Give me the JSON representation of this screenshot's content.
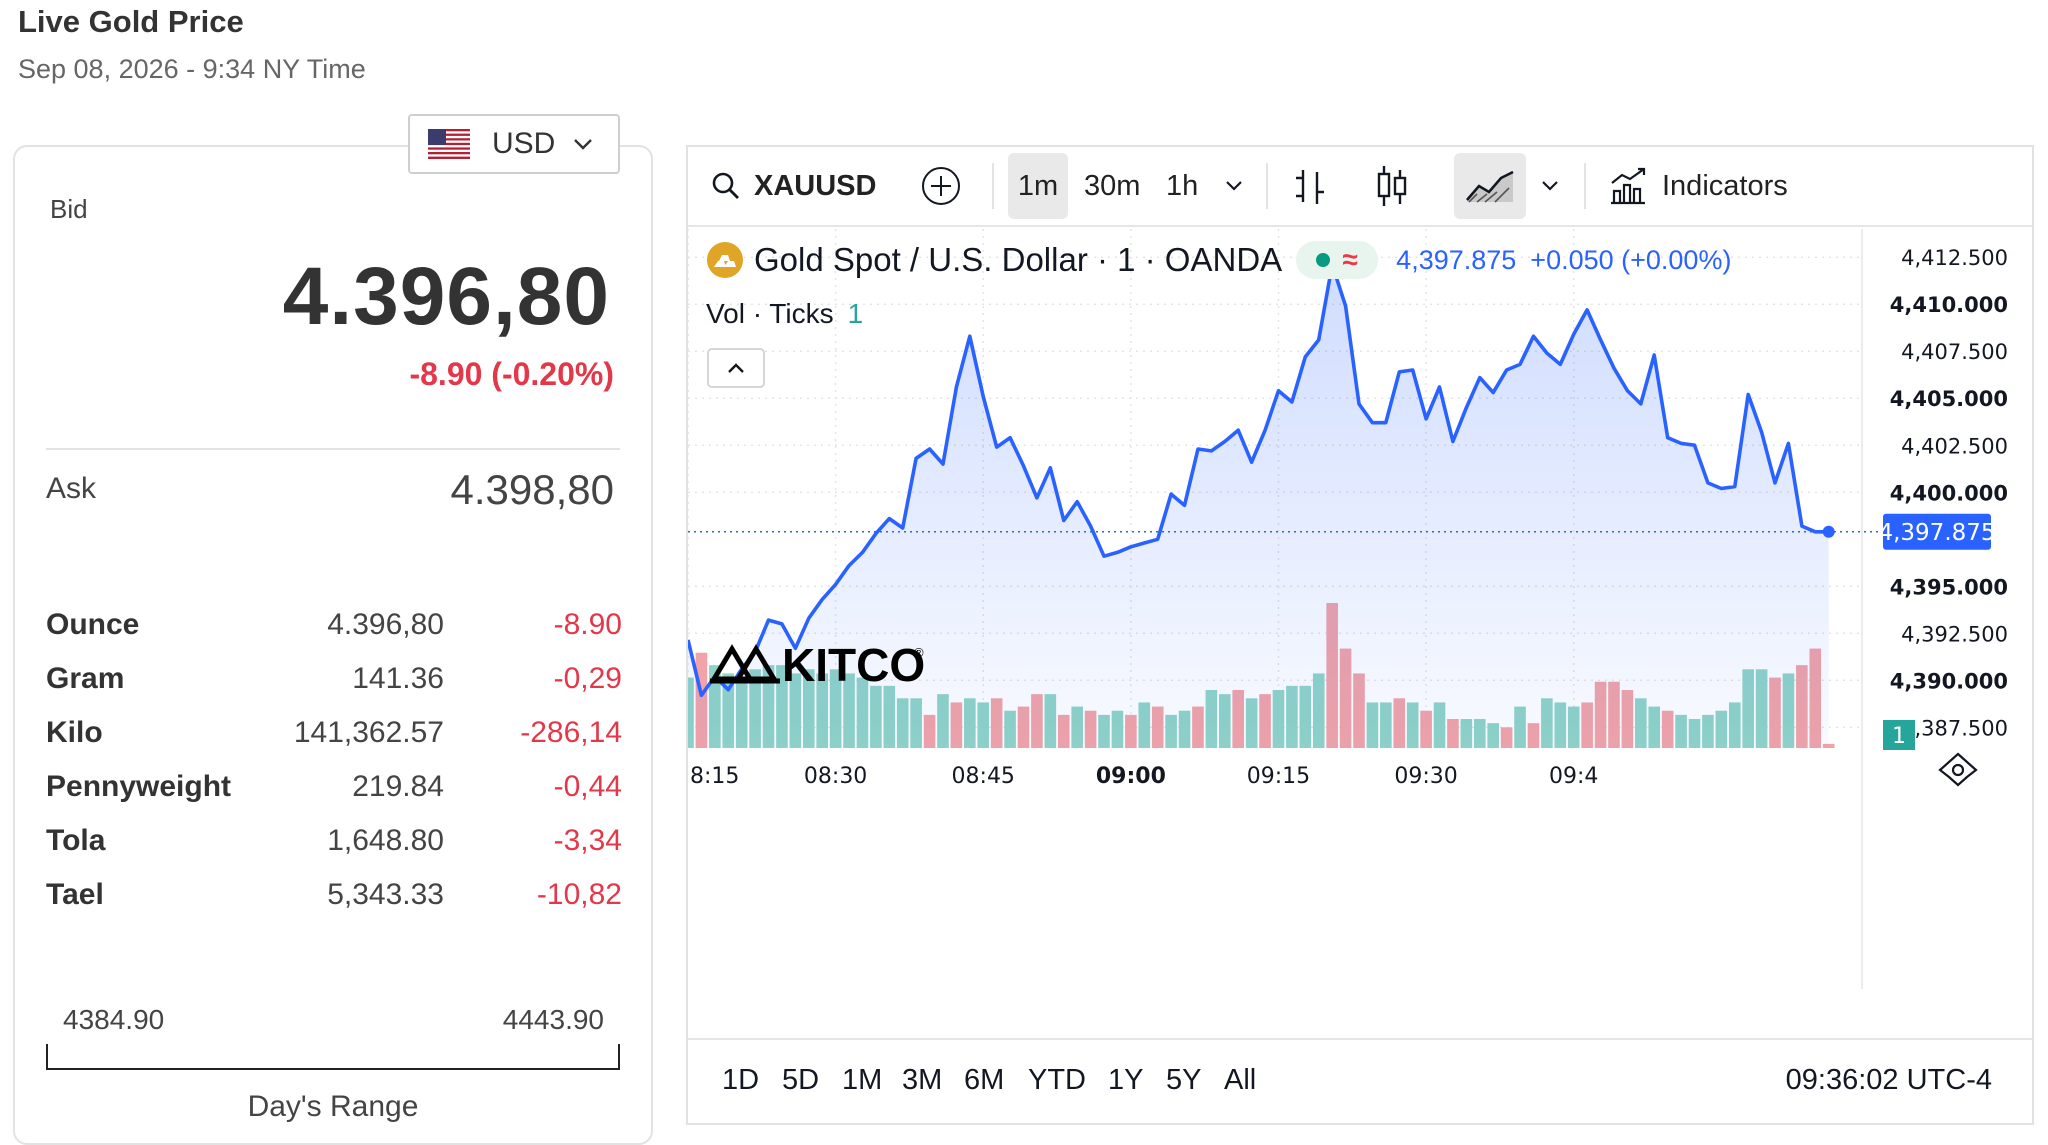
{
  "header": {
    "title": "Live Gold Price",
    "date": "Sep 08, 2026 - 9:34 NY Time"
  },
  "currency": {
    "code": "USD",
    "flag_icon": "us-flag-icon"
  },
  "quote": {
    "bid_label": "Bid",
    "bid": "4.396,80",
    "change": "-8.90 (-0.20%)",
    "ask_label": "Ask",
    "ask": "4.398,80"
  },
  "units": [
    {
      "name": "Ounce",
      "price": "4.396,80",
      "change": "-8.90"
    },
    {
      "name": "Gram",
      "price": "141.36",
      "change": "-0,29"
    },
    {
      "name": "Kilo",
      "price": "141,362.57",
      "change": "-286,14"
    },
    {
      "name": "Pennyweight",
      "price": "219.84",
      "change": "-0,44"
    },
    {
      "name": "Tola",
      "price": "1,648.80",
      "change": "-3,34"
    },
    {
      "name": "Tael",
      "price": "5,343.33",
      "change": "-10,82"
    }
  ],
  "days_range": {
    "low": "4384.90",
    "high": "4443.90",
    "label": "Day's Range"
  },
  "toolbar": {
    "symbol": "XAUUSD",
    "intervals": [
      "1m",
      "30m",
      "1h"
    ],
    "active_interval": "1m",
    "indicators_label": "Indicators"
  },
  "legend": {
    "name": "Gold Spot / U.S. Dollar · 1 · OANDA",
    "status_glyph": "≈",
    "price": "4,397.875",
    "change": "+0.050 (+0.00%)",
    "vol_label": "Vol · Ticks",
    "vol_value": "1"
  },
  "watermark": "KITCO",
  "periods": [
    "1D",
    "5D",
    "1M",
    "3M",
    "6M",
    "YTD",
    "1Y",
    "5Y",
    "All"
  ],
  "clock": "09:36:02 UTC-4",
  "colors": {
    "line": "#2962ff",
    "down": "#e3374a",
    "vol_up": "#8fd3c7",
    "vol_down": "#f1a3a7",
    "price_tag": "#2962ff"
  },
  "chart_data": {
    "type": "area",
    "title": "Gold Spot / U.S. Dollar · 1 · OANDA",
    "xlabel": "",
    "ylabel": "",
    "x_ticks": [
      "8:15",
      "08:30",
      "08:45",
      "09:00",
      "09:15",
      "09:30",
      "09:4"
    ],
    "y_ticks": [
      "4,412.500",
      "4,410.000",
      "4,407.500",
      "4,405.000",
      "4,402.500",
      "4,400.000",
      "4,395.000",
      "4,392.500",
      "4,390.000",
      "4,387.500"
    ],
    "ylim": [
      4386.4,
      4414.0
    ],
    "last_price_label": "4,397.875",
    "volume_tag": "1",
    "price_series": {
      "name": "XAUUSD",
      "points": [
        [
          0,
          4392.15
        ],
        [
          1,
          4389.2
        ],
        [
          2,
          4390.2
        ],
        [
          3,
          4389.5
        ],
        [
          4,
          4390.6
        ],
        [
          5,
          4391.5
        ],
        [
          6,
          4393.2
        ],
        [
          7,
          4393.0
        ],
        [
          8,
          4391.7
        ],
        [
          9,
          4393.3
        ],
        [
          10,
          4394.3
        ],
        [
          11,
          4395.1
        ],
        [
          12,
          4396.1
        ],
        [
          13,
          4396.8
        ],
        [
          14,
          4397.8
        ],
        [
          15,
          4398.6
        ],
        [
          16,
          4398.1
        ],
        [
          17,
          4401.8
        ],
        [
          18,
          4402.3
        ],
        [
          19,
          4401.5
        ],
        [
          20,
          4405.6
        ],
        [
          21,
          4408.3
        ],
        [
          22,
          4405.1
        ],
        [
          23,
          4402.4
        ],
        [
          24,
          4402.9
        ],
        [
          25,
          4401.4
        ],
        [
          26,
          4399.7
        ],
        [
          27,
          4401.3
        ],
        [
          28,
          4398.5
        ],
        [
          29,
          4399.5
        ],
        [
          30,
          4398.2
        ],
        [
          31,
          4396.6
        ],
        [
          32,
          4396.8
        ],
        [
          33,
          4397.1
        ],
        [
          34,
          4397.3
        ],
        [
          35,
          4397.5
        ],
        [
          36,
          4399.9
        ],
        [
          37,
          4399.3
        ],
        [
          38,
          4402.3
        ],
        [
          39,
          4402.2
        ],
        [
          40,
          4402.7
        ],
        [
          41,
          4403.3
        ],
        [
          42,
          4401.6
        ],
        [
          43,
          4403.3
        ],
        [
          44,
          4405.4
        ],
        [
          45,
          4404.8
        ],
        [
          46,
          4407.2
        ],
        [
          47,
          4408.1
        ],
        [
          48,
          4412.1
        ],
        [
          49,
          4409.9
        ],
        [
          50,
          4404.7
        ],
        [
          51,
          4403.7
        ],
        [
          52,
          4403.7
        ],
        [
          53,
          4406.4
        ],
        [
          54,
          4406.5
        ],
        [
          55,
          4403.9
        ],
        [
          56,
          4405.6
        ],
        [
          57,
          4402.7
        ],
        [
          58,
          4404.5
        ],
        [
          59,
          4406.1
        ],
        [
          60,
          4405.3
        ],
        [
          61,
          4406.5
        ],
        [
          62,
          4406.8
        ],
        [
          63,
          4408.3
        ],
        [
          64,
          4407.4
        ],
        [
          65,
          4406.8
        ],
        [
          66,
          4408.4
        ],
        [
          67,
          4409.7
        ],
        [
          68,
          4408.1
        ],
        [
          69,
          4406.6
        ],
        [
          70,
          4405.4
        ],
        [
          71,
          4404.7
        ],
        [
          72,
          4407.3
        ],
        [
          73,
          4402.9
        ],
        [
          74,
          4402.6
        ],
        [
          75,
          4402.5
        ],
        [
          76,
          4400.5
        ],
        [
          77,
          4400.2
        ],
        [
          78,
          4400.3
        ],
        [
          79,
          4405.2
        ],
        [
          80,
          4403.2
        ],
        [
          81,
          4400.5
        ],
        [
          82,
          4402.6
        ],
        [
          83,
          4398.2
        ],
        [
          84,
          4397.9
        ],
        [
          85,
          4397.9
        ]
      ]
    },
    "volume_series": {
      "name": "Vol · Ticks",
      "up": [
        true,
        false,
        true,
        true,
        true,
        true,
        true,
        true,
        true,
        true,
        true,
        true,
        true,
        true,
        true,
        true,
        true,
        true,
        false,
        true,
        false,
        true,
        true,
        false,
        true,
        false,
        false,
        true,
        false,
        true,
        false,
        true,
        true,
        false,
        true,
        false,
        true,
        true,
        false,
        true,
        true,
        false,
        true,
        false,
        true,
        true,
        true,
        true,
        false,
        false,
        false,
        true,
        true,
        false,
        true,
        false,
        true,
        false,
        true,
        true,
        true,
        false,
        true,
        false,
        true,
        true,
        true,
        false,
        false,
        false,
        false,
        true,
        true,
        false,
        true,
        true,
        true,
        true,
        true,
        true,
        true,
        false,
        true,
        false,
        false,
        false
      ],
      "values": [
        17,
        23,
        20,
        18,
        17,
        19,
        20,
        20,
        18,
        19,
        18,
        19,
        18,
        17,
        15,
        15,
        12,
        12,
        8,
        13,
        11,
        12,
        11,
        12,
        9,
        10,
        13,
        13,
        8,
        10,
        9,
        8,
        9,
        8,
        11,
        10,
        8,
        9,
        10,
        14,
        13,
        14,
        12,
        13,
        14,
        15,
        15,
        18,
        35,
        24,
        18,
        11,
        11,
        12,
        11,
        9,
        11,
        7,
        7,
        7,
        6,
        5,
        10,
        6,
        12,
        11,
        10,
        11,
        16,
        16,
        14,
        12,
        10,
        9,
        8,
        7,
        8,
        9,
        11,
        19,
        19,
        17,
        18,
        20,
        24,
        1
      ]
    }
  }
}
